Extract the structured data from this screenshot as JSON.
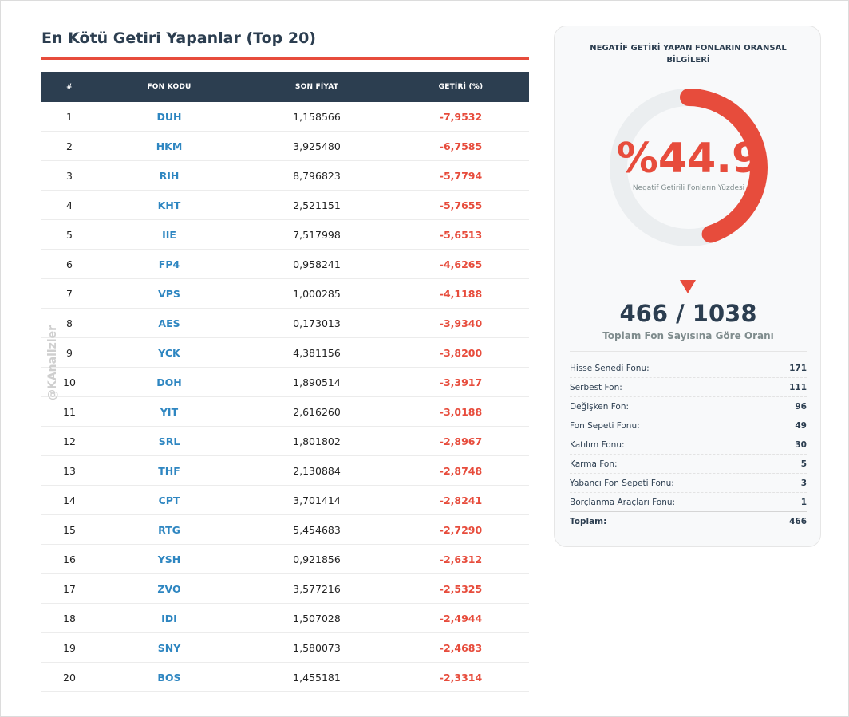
{
  "title": "En Kötü Getiri Yapanlar (Top 20)",
  "watermark": "@KAnalizler",
  "colors": {
    "accent": "#e74c3c",
    "header": "#2c3e50",
    "code": "#2e86c1"
  },
  "table": {
    "headers": [
      "#",
      "FON KODU",
      "SON FİYAT",
      "GETİRİ (%)"
    ],
    "rows": [
      {
        "rank": "1",
        "code": "DUH",
        "price": "1,158566",
        "ret": "-7,9532"
      },
      {
        "rank": "2",
        "code": "HKM",
        "price": "3,925480",
        "ret": "-6,7585"
      },
      {
        "rank": "3",
        "code": "RIH",
        "price": "8,796823",
        "ret": "-5,7794"
      },
      {
        "rank": "4",
        "code": "KHT",
        "price": "2,521151",
        "ret": "-5,7655"
      },
      {
        "rank": "5",
        "code": "IIE",
        "price": "7,517998",
        "ret": "-5,6513"
      },
      {
        "rank": "6",
        "code": "FP4",
        "price": "0,958241",
        "ret": "-4,6265"
      },
      {
        "rank": "7",
        "code": "VPS",
        "price": "1,000285",
        "ret": "-4,1188"
      },
      {
        "rank": "8",
        "code": "AES",
        "price": "0,173013",
        "ret": "-3,9340"
      },
      {
        "rank": "9",
        "code": "YCK",
        "price": "4,381156",
        "ret": "-3,8200"
      },
      {
        "rank": "10",
        "code": "DOH",
        "price": "1,890514",
        "ret": "-3,3917"
      },
      {
        "rank": "11",
        "code": "YIT",
        "price": "2,616260",
        "ret": "-3,0188"
      },
      {
        "rank": "12",
        "code": "SRL",
        "price": "1,801802",
        "ret": "-2,8967"
      },
      {
        "rank": "13",
        "code": "THF",
        "price": "2,130884",
        "ret": "-2,8748"
      },
      {
        "rank": "14",
        "code": "CPT",
        "price": "3,701414",
        "ret": "-2,8241"
      },
      {
        "rank": "15",
        "code": "RTG",
        "price": "5,454683",
        "ret": "-2,7290"
      },
      {
        "rank": "16",
        "code": "YSH",
        "price": "0,921856",
        "ret": "-2,6312"
      },
      {
        "rank": "17",
        "code": "ZVO",
        "price": "3,577216",
        "ret": "-2,5325"
      },
      {
        "rank": "18",
        "code": "IDI",
        "price": "1,507028",
        "ret": "-2,4944"
      },
      {
        "rank": "19",
        "code": "SNY",
        "price": "1,580073",
        "ret": "-2,4683"
      },
      {
        "rank": "20",
        "code": "BOS",
        "price": "1,455181",
        "ret": "-2,3314"
      }
    ]
  },
  "panel": {
    "title": "NEGATİF GETİRİ YAPAN FONLARIN ORANSAL BİLGİLERİ",
    "percent_text": "%44.9",
    "percent_value": 44.9,
    "percent_caption": "Negatif Getirili Fonların Yüzdesi",
    "ratio_text": "466 / 1038",
    "ratio_caption": "Toplam Fon Sayısına Göre Oranı",
    "breakdown": [
      {
        "label": "Hisse Senedi Fonu:",
        "value": "171"
      },
      {
        "label": "Serbest Fon:",
        "value": "111"
      },
      {
        "label": "Değişken Fon:",
        "value": "96"
      },
      {
        "label": "Fon Sepeti Fonu:",
        "value": "49"
      },
      {
        "label": "Katılım Fonu:",
        "value": "30"
      },
      {
        "label": "Karma Fon:",
        "value": "5"
      },
      {
        "label": "Yabancı Fon Sepeti Fonu:",
        "value": "3"
      },
      {
        "label": "Borçlanma Araçları Fonu:",
        "value": "1"
      }
    ],
    "total_label": "Toplam:",
    "total_value": "466"
  }
}
